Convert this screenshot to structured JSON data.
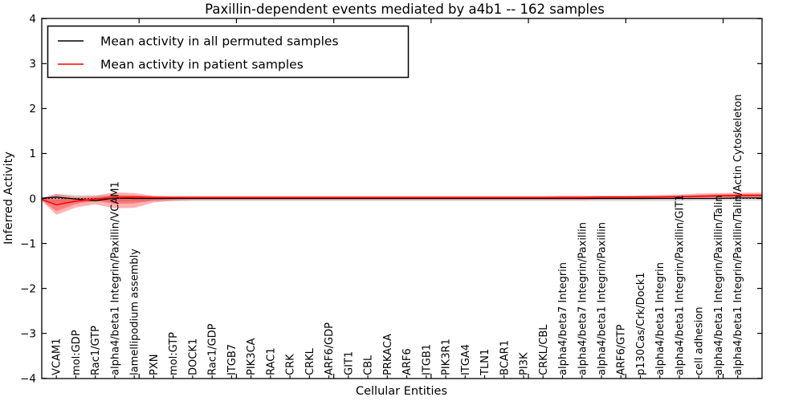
{
  "figure": {
    "title": "Paxillin-dependent events mediated by a4b1 -- 162 samples"
  },
  "chart_data": {
    "type": "line",
    "title": "Paxillin-dependent events mediated by a4b1 -- 162 samples",
    "xlabel": "Cellular Entities",
    "ylabel": "Inferred Activity",
    "ylim": [
      -4,
      4
    ],
    "yticks": [
      -4,
      -3,
      -2,
      -1,
      0,
      1,
      2,
      3,
      4
    ],
    "x_value_range": [
      0,
      37
    ],
    "x_major_ticks": [
      5,
      10,
      15,
      20,
      25,
      30,
      35
    ],
    "grid": false,
    "zero_line": {
      "y": 0,
      "style": "dotted",
      "color": "#000000"
    },
    "categories": [
      "VCAM1",
      "mol:GDP",
      "Rac1/GTP",
      "alpha4/beta1 Integrin/Paxillin/VCAM1",
      "lamellipodium assembly",
      "PXN",
      "mol:GTP",
      "DOCK1",
      "Rac1/GDP",
      "ITGB7",
      "PIK3CA",
      "RAC1",
      "CRK",
      "CRKL",
      "ARF6/GDP",
      "GIT1",
      "CBL",
      "PRKACA",
      "ARF6",
      "ITGB1",
      "PIK3R1",
      "ITGA4",
      "TLN1",
      "BCAR1",
      "PI3K",
      "CRKL/CBL",
      "alpha4/beta7 Integrin",
      "alpha4/beta7 Integrin/Paxillin",
      "alpha4/beta1 Integrin/Paxillin",
      "ARF6/GTP",
      "p130Cas/Crk/Dock1",
      "alpha4/beta1 Integrin",
      "alpha4/beta1 Integrin/Paxillin/GIT1",
      "cell adhesion",
      "alpha4/beta1 Integrin/Paxillin/Talin",
      "alpha4/beta1 Integrin/Paxillin/Talin/Actin Cytoskeleton"
    ],
    "legend": {
      "position": "upper left",
      "entries": [
        {
          "label": "Mean activity in all permuted samples",
          "color": "#000000"
        },
        {
          "label": "Mean activity in patient samples",
          "color": "#ff0000"
        }
      ]
    },
    "series": [
      {
        "name": "Mean activity in all permuted samples",
        "color": "#000000",
        "values": [
          0.03,
          -0.01,
          -0.05,
          0.01,
          0,
          0,
          0,
          0,
          0,
          0,
          0,
          0,
          0,
          0,
          0,
          0,
          0,
          0,
          0,
          0,
          0,
          0,
          0,
          0,
          0,
          0,
          0,
          0,
          0,
          0,
          0,
          0,
          0,
          0,
          0,
          0.01
        ]
      },
      {
        "name": "Mean activity in patient samples",
        "color": "#ff0000",
        "values": [
          -0.14,
          -0.06,
          -0.01,
          0.02,
          0.03,
          0.02,
          0.02,
          0.02,
          0.02,
          0.02,
          0.02,
          0.02,
          0.02,
          0.02,
          0.02,
          0.02,
          0.02,
          0.02,
          0.02,
          0.02,
          0.02,
          0.02,
          0.02,
          0.02,
          0.02,
          0.02,
          0.02,
          0.02,
          0.03,
          0.03,
          0.03,
          0.03,
          0.04,
          0.05,
          0.06,
          0.07
        ]
      }
    ],
    "bands": [
      {
        "name": "permuted-samples-range",
        "color": "rgba(120,120,120,0.25)",
        "upper": [
          0.1,
          0.08,
          0.07,
          0.07,
          0.06,
          0.06,
          0.06,
          0.06,
          0.06,
          0.06,
          0.06,
          0.06,
          0.06,
          0.06,
          0.06,
          0.06,
          0.06,
          0.06,
          0.06,
          0.06,
          0.06,
          0.06,
          0.06,
          0.06,
          0.06,
          0.06,
          0.06,
          0.06,
          0.06,
          0.06,
          0.06,
          0.06,
          0.06,
          0.06,
          0.07,
          0.07
        ],
        "lower": [
          -0.1,
          -0.08,
          -0.07,
          -0.07,
          -0.06,
          -0.06,
          -0.06,
          -0.06,
          -0.06,
          -0.06,
          -0.06,
          -0.06,
          -0.06,
          -0.06,
          -0.06,
          -0.06,
          -0.06,
          -0.06,
          -0.06,
          -0.06,
          -0.06,
          -0.06,
          -0.06,
          -0.06,
          -0.06,
          -0.06,
          -0.06,
          -0.06,
          -0.06,
          -0.06,
          -0.06,
          -0.06,
          -0.06,
          -0.05,
          -0.05,
          -0.05
        ]
      },
      {
        "name": "patient-samples-range-outer",
        "color": "rgba(255,0,0,0.30)",
        "upper": [
          0.1,
          0.04,
          0.06,
          0.14,
          0.12,
          0.06,
          0.05,
          0.05,
          0.05,
          0.05,
          0.05,
          0.05,
          0.05,
          0.05,
          0.05,
          0.05,
          0.05,
          0.05,
          0.05,
          0.05,
          0.05,
          0.05,
          0.05,
          0.05,
          0.05,
          0.05,
          0.06,
          0.06,
          0.06,
          0.06,
          0.07,
          0.08,
          0.09,
          0.11,
          0.12,
          0.13
        ],
        "lower": [
          -0.36,
          -0.2,
          -0.13,
          -0.22,
          -0.21,
          -0.09,
          -0.05,
          -0.03,
          -0.03,
          -0.03,
          -0.03,
          -0.03,
          -0.03,
          -0.03,
          -0.03,
          -0.03,
          -0.03,
          -0.03,
          -0.03,
          -0.03,
          -0.03,
          -0.03,
          -0.03,
          -0.03,
          -0.03,
          -0.03,
          -0.03,
          -0.03,
          -0.02,
          -0.02,
          -0.02,
          -0.01,
          -0.01,
          0,
          0.01,
          0.02
        ]
      },
      {
        "name": "patient-samples-range-inner",
        "color": "rgba(255,0,0,0.30)",
        "upper": [
          -0.02,
          0,
          0.02,
          0.08,
          0.07,
          0.04,
          0.03,
          0.03,
          0.03,
          0.03,
          0.03,
          0.03,
          0.03,
          0.03,
          0.03,
          0.03,
          0.03,
          0.03,
          0.03,
          0.03,
          0.03,
          0.03,
          0.03,
          0.03,
          0.03,
          0.03,
          0.04,
          0.04,
          0.04,
          0.04,
          0.05,
          0.05,
          0.06,
          0.08,
          0.09,
          0.1
        ],
        "lower": [
          -0.28,
          -0.12,
          -0.05,
          -0.12,
          -0.11,
          -0.04,
          -0.01,
          0,
          0,
          0,
          0,
          0,
          0,
          0,
          0,
          0,
          0,
          0,
          0,
          0,
          0,
          0,
          0,
          0,
          0,
          0,
          0.01,
          0.01,
          0.01,
          0.01,
          0.01,
          0.02,
          0.02,
          0.03,
          0.03,
          0.04
        ]
      }
    ]
  }
}
